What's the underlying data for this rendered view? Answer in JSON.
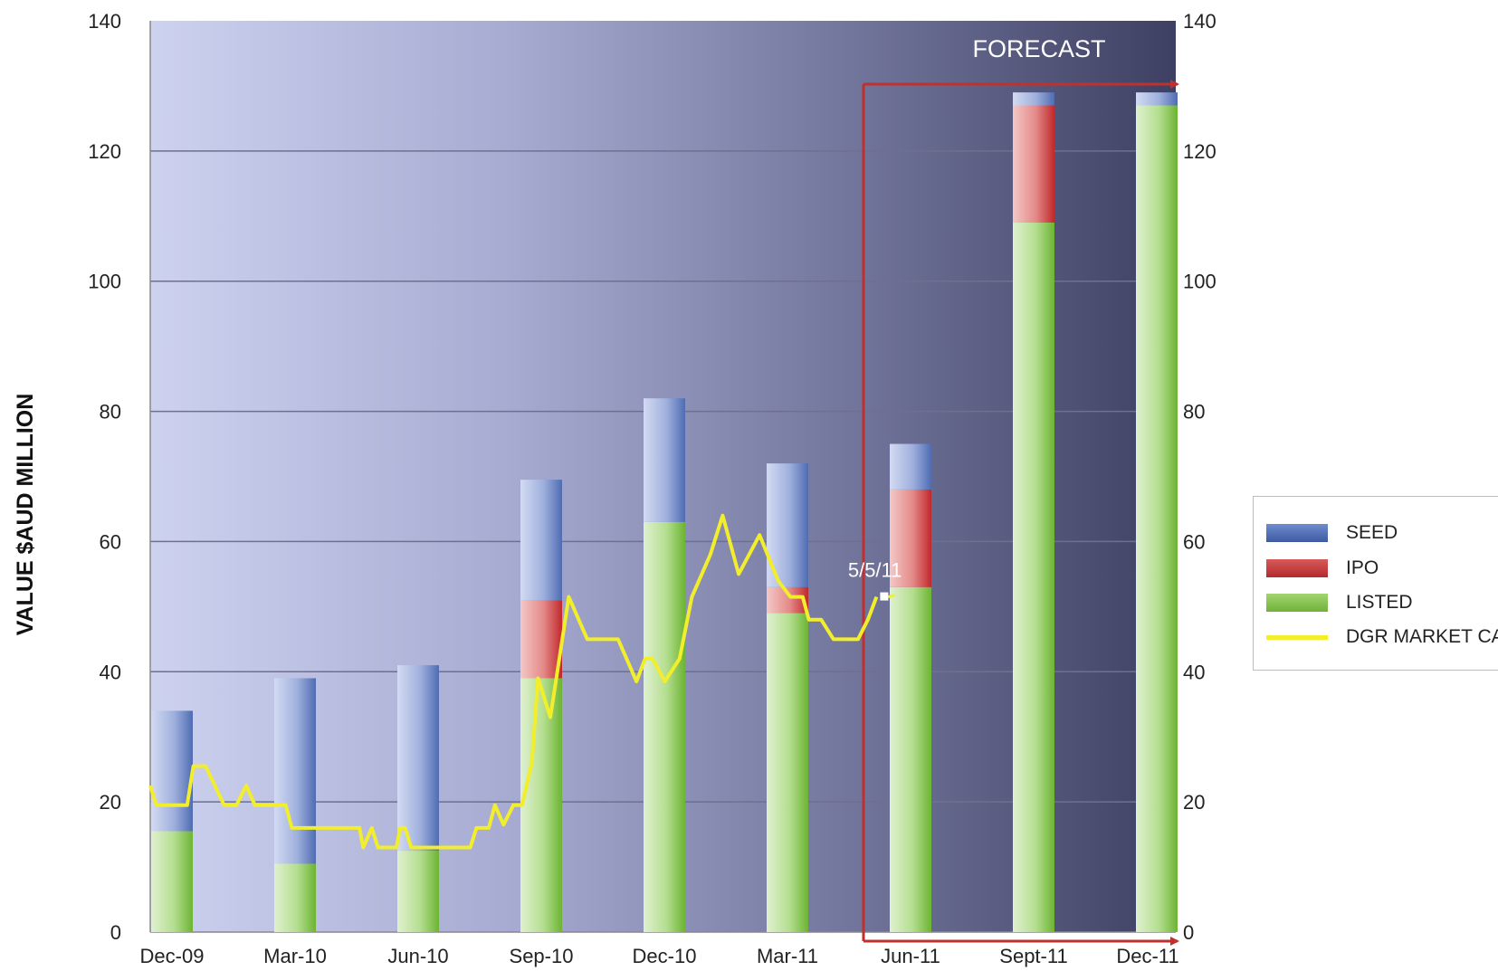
{
  "chart_data": {
    "type": "bar",
    "subtype": "stacked bar with line overlay",
    "ylabel": "VALUE $AUD MILLION",
    "ylim": [
      0,
      140
    ],
    "yticks": [
      0,
      20,
      40,
      60,
      80,
      100,
      120,
      140
    ],
    "secondary_yticks": [
      0,
      20,
      40,
      60,
      80,
      100,
      120,
      140
    ],
    "categories": [
      "Dec-09",
      "Mar-10",
      "Jun-10",
      "Sep-10",
      "Dec-10",
      "Mar-11",
      "Jun-11",
      "Sept-11",
      "Dec-11"
    ],
    "series": [
      {
        "name": "LISTED",
        "color": "#7dc242",
        "values": [
          15.5,
          10.5,
          12.5,
          39,
          63,
          49,
          53,
          109,
          127
        ]
      },
      {
        "name": "IPO",
        "color": "#c0393b",
        "values": [
          0,
          0,
          0,
          12,
          0,
          4,
          15,
          18,
          0
        ]
      },
      {
        "name": "SEED",
        "color": "#4e6fb5",
        "values": [
          18.5,
          28.5,
          28.5,
          18.5,
          19,
          19,
          7,
          2,
          2
        ]
      }
    ],
    "line_series": {
      "name": "DGR MARKET CAP",
      "color": "#f2ee2c",
      "points": [
        [
          0,
          22.5
        ],
        [
          0.05,
          19.5
        ],
        [
          0.3,
          19.5
        ],
        [
          0.35,
          25.5
        ],
        [
          0.45,
          25.5
        ],
        [
          0.6,
          19.5
        ],
        [
          0.7,
          19.5
        ],
        [
          0.78,
          22.5
        ],
        [
          0.85,
          19.5
        ],
        [
          1.1,
          19.5
        ],
        [
          1.15,
          16
        ],
        [
          1.5,
          16
        ],
        [
          1.7,
          16
        ],
        [
          1.73,
          13
        ],
        [
          1.8,
          16
        ],
        [
          1.85,
          13
        ],
        [
          2.0,
          13
        ],
        [
          2.03,
          16
        ],
        [
          2.07,
          16
        ],
        [
          2.12,
          13
        ],
        [
          2.4,
          13
        ],
        [
          2.6,
          13
        ],
        [
          2.65,
          16
        ],
        [
          2.75,
          16
        ],
        [
          2.8,
          19.5
        ],
        [
          2.87,
          16.5
        ],
        [
          2.95,
          19.5
        ],
        [
          3.02,
          19.5
        ],
        [
          3.1,
          26
        ],
        [
          3.15,
          39
        ],
        [
          3.25,
          33
        ],
        [
          3.4,
          51.5
        ],
        [
          3.55,
          45
        ],
        [
          3.65,
          45
        ],
        [
          3.8,
          45
        ],
        [
          3.95,
          38.5
        ],
        [
          4.02,
          42
        ],
        [
          4.08,
          42
        ],
        [
          4.18,
          38.5
        ],
        [
          4.3,
          42
        ],
        [
          4.4,
          51.5
        ],
        [
          4.55,
          58
        ],
        [
          4.65,
          64
        ],
        [
          4.78,
          55
        ],
        [
          4.95,
          61
        ],
        [
          5.1,
          54
        ],
        [
          5.2,
          51.5
        ],
        [
          5.3,
          51.5
        ],
        [
          5.35,
          48
        ],
        [
          5.45,
          48
        ],
        [
          5.55,
          45
        ],
        [
          5.75,
          45
        ],
        [
          5.83,
          48
        ],
        [
          5.9,
          51.5
        ]
      ]
    },
    "annotations": [
      {
        "text": "5/5/11"
      },
      {
        "text": "FORECAST"
      }
    ],
    "legend": {
      "position": "right",
      "items": [
        {
          "label": "SEED",
          "color": "#4e6fb5",
          "kind": "bar"
        },
        {
          "label": "IPO",
          "color": "#c0393b",
          "kind": "bar"
        },
        {
          "label": "LISTED",
          "color": "#7dc242",
          "kind": "bar"
        },
        {
          "label": "DGR MARKET CAP",
          "color": "#f2ee2c",
          "kind": "line"
        }
      ]
    },
    "grid": true,
    "forecast_start_category": "Jun-11"
  }
}
